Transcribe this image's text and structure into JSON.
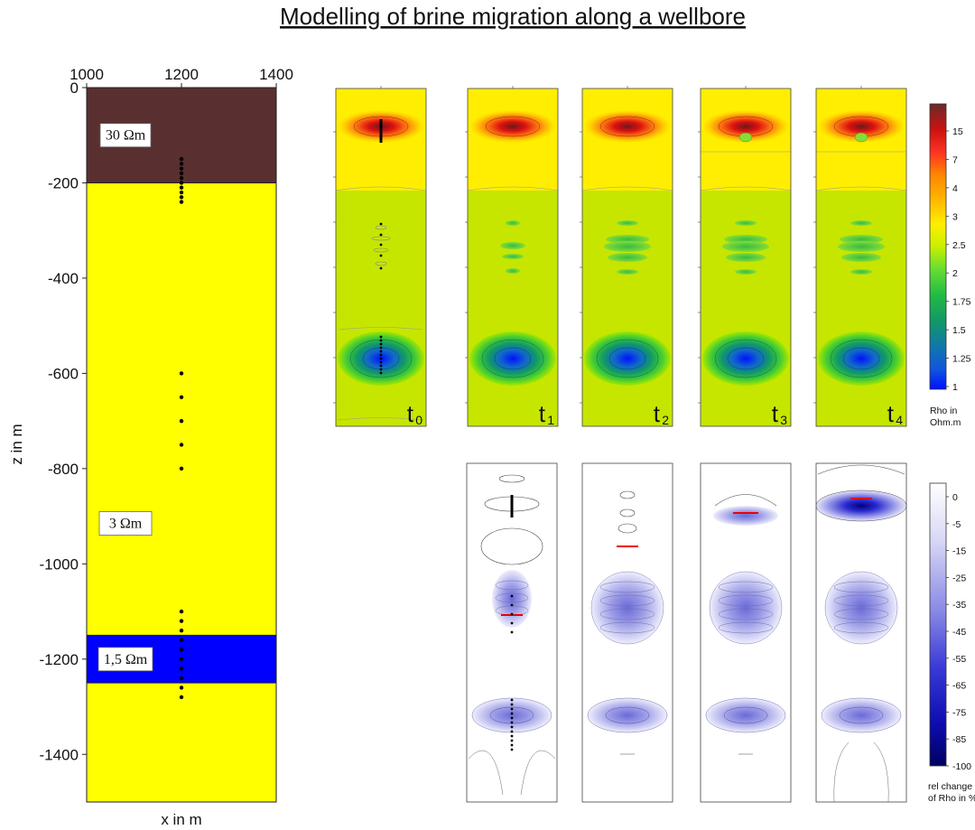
{
  "figure": {
    "title": "Modelling of brine migration along a wellbore"
  },
  "model": {
    "x_ticks": [
      "1000",
      "1200",
      "1400"
    ],
    "z_ticks": [
      "0",
      "-200",
      "-400",
      "-600",
      "-800",
      "-1000",
      "-1200",
      "-1400"
    ],
    "x_label": "x in m",
    "z_label": "z in m",
    "layers": [
      {
        "label": "30 Ωm",
        "top_z": 0,
        "bottom_z": -200,
        "color": "#5a2f2f"
      },
      {
        "label": "3 Ωm",
        "top_z": -200,
        "bottom_z": -1150,
        "color": "#ffff00"
      },
      {
        "label": "1,5 Ωm",
        "top_z": -1150,
        "bottom_z": -1250,
        "color": "#0000ff"
      },
      {
        "label": "",
        "top_z": -1250,
        "bottom_z": -1500,
        "color": "#ffff00"
      }
    ],
    "well_x": 1200
  },
  "time_steps": [
    {
      "base": "t",
      "sub": "0"
    },
    {
      "base": "t",
      "sub": "1"
    },
    {
      "base": "t",
      "sub": "2"
    },
    {
      "base": "t",
      "sub": "3"
    },
    {
      "base": "t",
      "sub": "4"
    }
  ],
  "rho_colorbar": {
    "title_line1": "Rho in",
    "title_line2": "Ohm.m",
    "ticks": [
      "15",
      "7",
      "4",
      "3",
      "2.5",
      "2",
      "1.75",
      "1.5",
      "1.25",
      "1"
    ],
    "colors": [
      "#6b2a2a",
      "#cc1111",
      "#ff3322",
      "#ff8800",
      "#ffb300",
      "#ffee00",
      "#c8f000",
      "#66dd33",
      "#22bb44",
      "#119966",
      "#1177aa",
      "#1155dd",
      "#0011ff"
    ]
  },
  "change_colorbar": {
    "title_line1": "rel change",
    "title_line2": "of Rho in %",
    "ticks": [
      "0",
      "-5",
      "-15",
      "-25",
      "-35",
      "-45",
      "-55",
      "-65",
      "-75",
      "-85",
      "-100"
    ]
  }
}
